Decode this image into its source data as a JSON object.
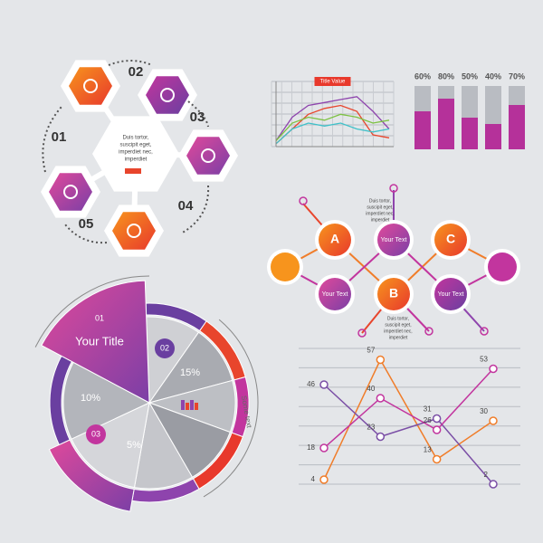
{
  "hex_cycle": {
    "steps": [
      "01",
      "02",
      "03",
      "04",
      "05"
    ],
    "center_text": [
      "Duis tortor,",
      "suscipit eget,",
      "imperdiet nec,",
      "imperdiet"
    ]
  },
  "chart_data": [
    {
      "type": "line",
      "title": "Title Value",
      "categories": [
        null,
        null,
        null,
        null,
        null,
        null,
        null,
        null
      ],
      "ylim": [
        0,
        10
      ],
      "grid": true,
      "series": [
        {
          "color": "#8e44ad",
          "values": [
            1,
            5,
            7,
            7.5,
            8,
            8.5,
            6,
            3
          ]
        },
        {
          "color": "#e8452c",
          "values": [
            0.5,
            3,
            5.5,
            6.5,
            7,
            6,
            2,
            1.5
          ]
        },
        {
          "color": "#7dc242",
          "values": [
            1,
            4,
            5,
            4.5,
            5.5,
            5,
            4,
            4.5
          ]
        },
        {
          "color": "#3fc1c9",
          "values": [
            0.5,
            3,
            4,
            3.5,
            4,
            3,
            2.5,
            3
          ]
        }
      ]
    },
    {
      "type": "bar",
      "categories": [
        null,
        null,
        null,
        null,
        null
      ],
      "values": [
        60,
        80,
        50,
        40,
        70
      ],
      "value_labels": [
        "60%",
        "80%",
        "50%",
        "40%",
        "70%"
      ],
      "color": "#b5319a",
      "ylim": [
        0,
        100
      ]
    },
    {
      "type": "line",
      "categories": [
        null,
        null,
        null,
        null
      ],
      "ylim": [
        0,
        60
      ],
      "grid": true,
      "series": [
        {
          "color": "#f07d2a",
          "values": [
            4,
            57,
            13,
            30
          ]
        },
        {
          "color": "#7b4fa6",
          "values": [
            46,
            23,
            31,
            2
          ]
        },
        {
          "color": "#c2359e",
          "values": [
            18,
            40,
            26,
            53
          ]
        }
      ]
    }
  ],
  "node_diagram": {
    "nodes": [
      "A",
      "Your Text",
      "C",
      "Your Text",
      "B",
      "Your Text"
    ],
    "notes": [
      [
        "Duis tortor,",
        "suscipit eget,",
        "imperdiet nec,",
        "imperdiet"
      ],
      [
        "Duis tortor,",
        "suscipit eget,",
        "imperdiet nec,",
        "imperdiet"
      ]
    ]
  },
  "polar": {
    "number": "01",
    "title": "Your Title",
    "labels": [
      "02",
      "15%",
      "10%",
      "03",
      "5%"
    ],
    "side_text": "Some text"
  }
}
